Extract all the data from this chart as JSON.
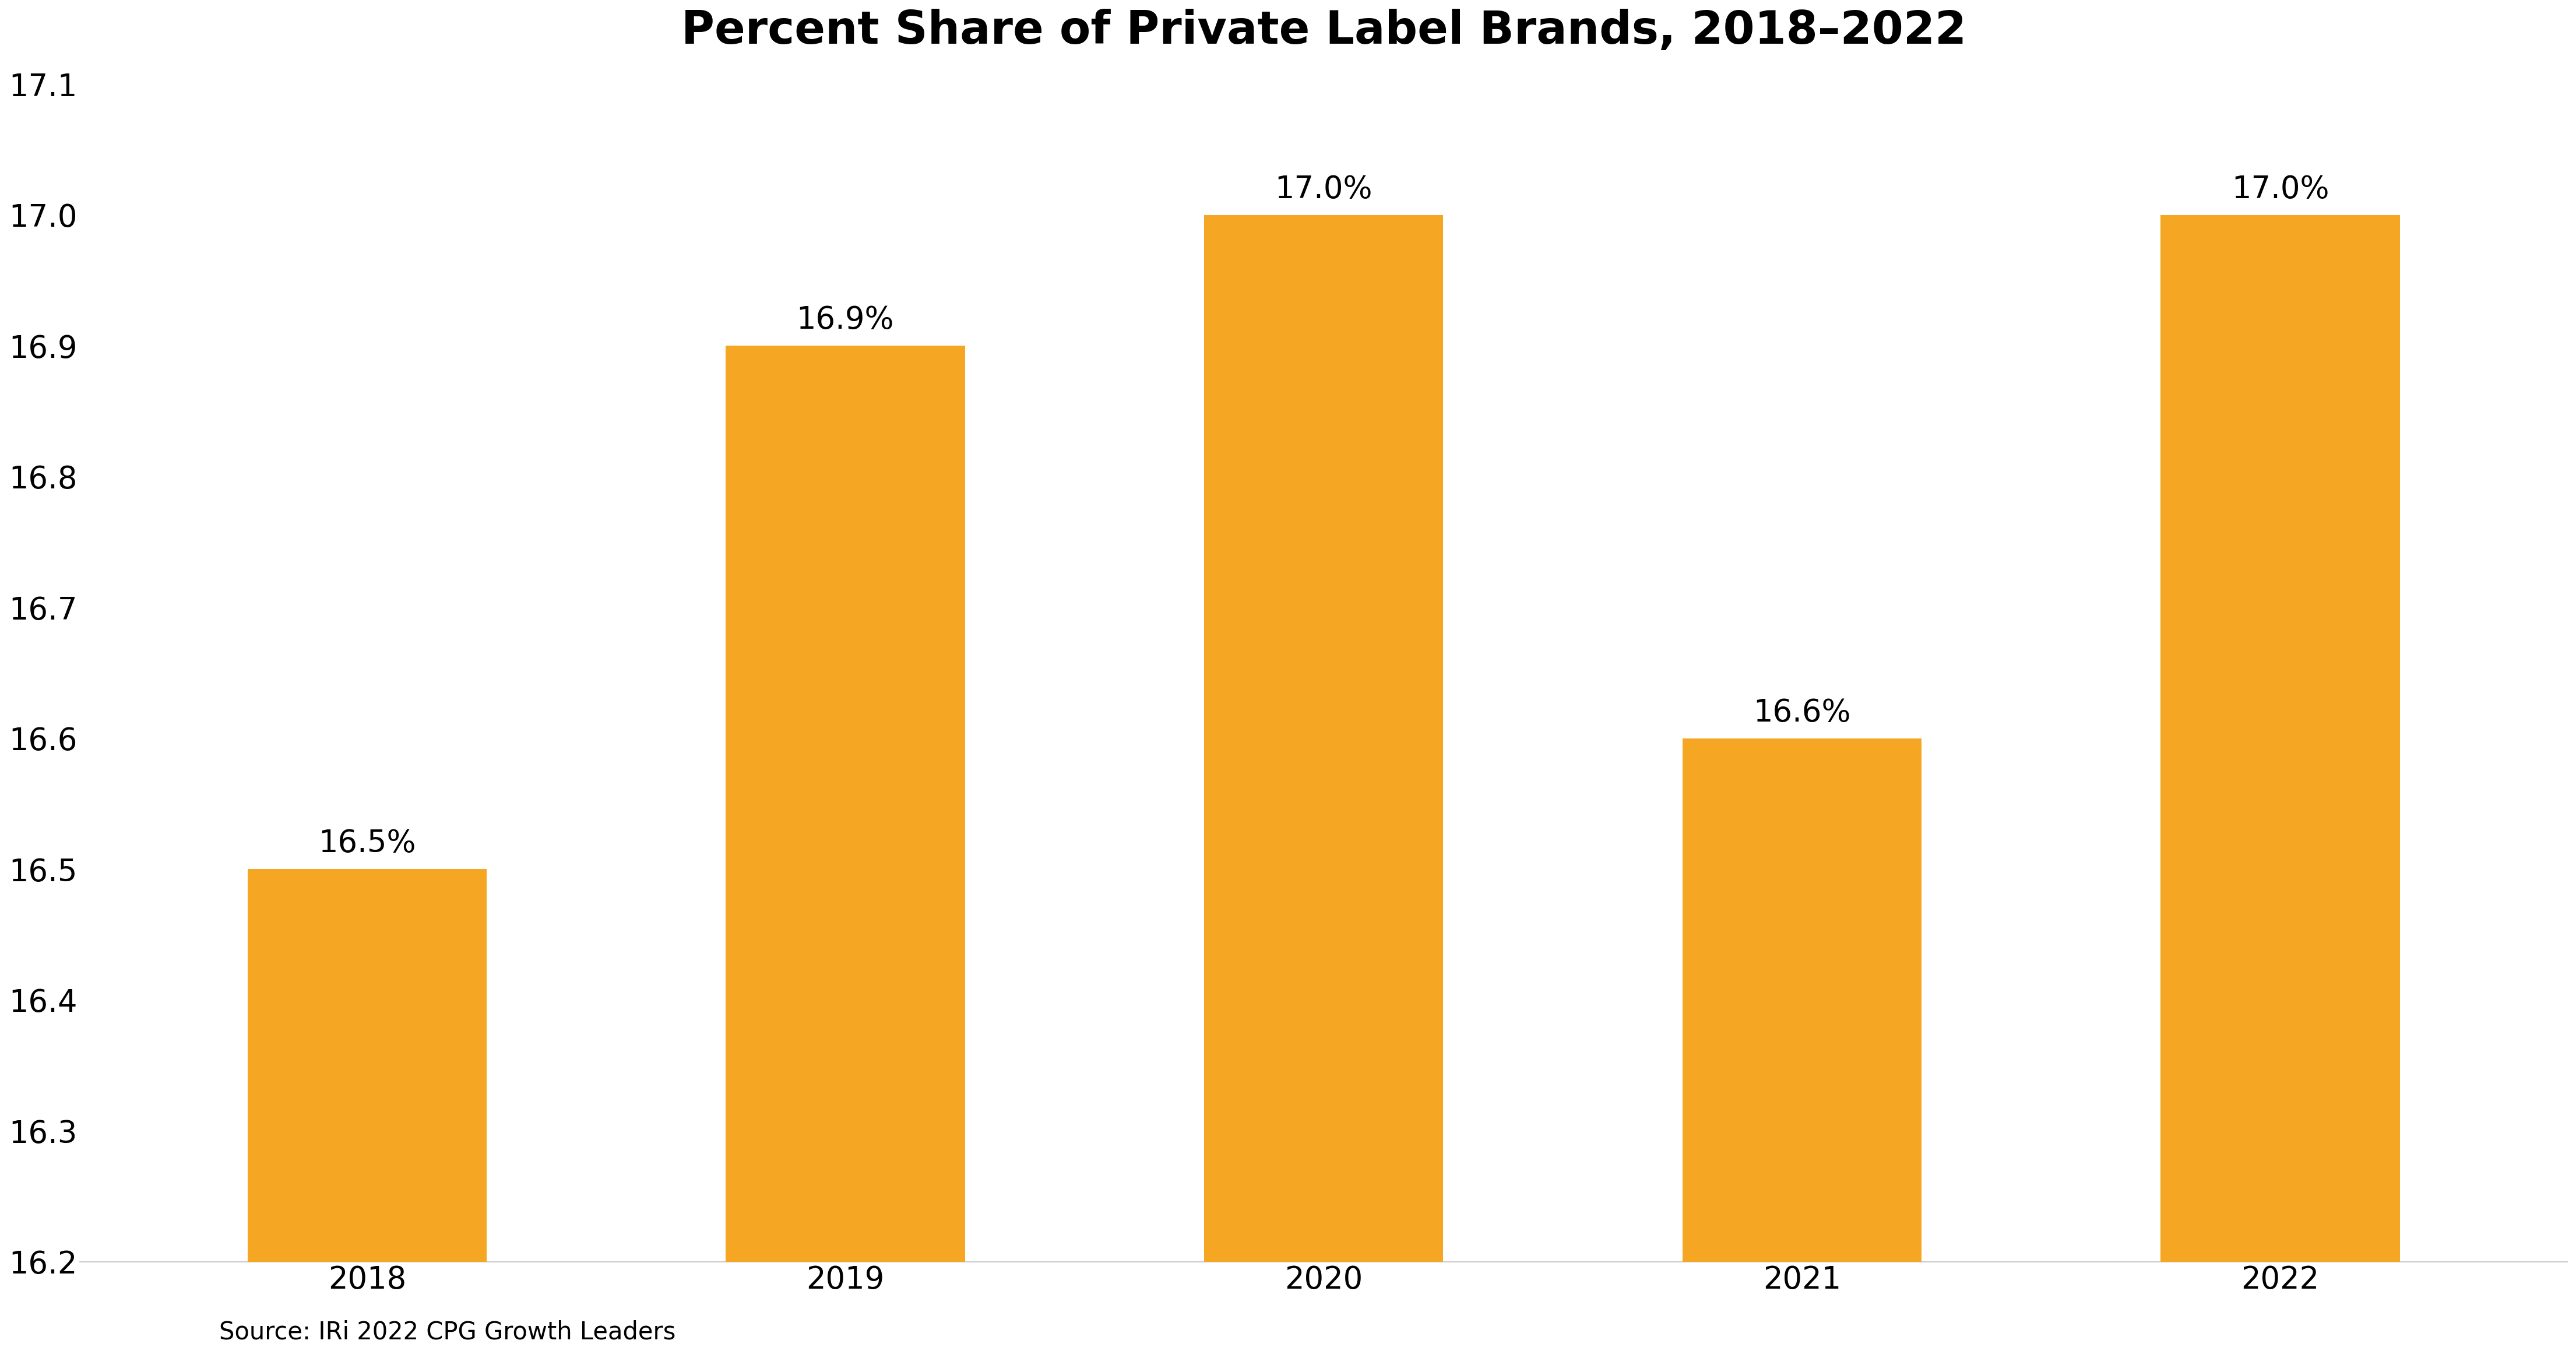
{
  "title": "Percent Share of Private Label Brands, 2018–2022",
  "categories": [
    "2018",
    "2019",
    "2020",
    "2021",
    "2022"
  ],
  "values": [
    16.5,
    16.9,
    17.0,
    16.6,
    17.0
  ],
  "labels": [
    "16.5%",
    "16.9%",
    "17.0%",
    "16.6%",
    "17.0%"
  ],
  "bar_color": "#F5A623",
  "background_color": "#FFFFFF",
  "ylim_min": 16.2,
  "ylim_max": 17.1,
  "yticks": [
    16.2,
    16.3,
    16.4,
    16.5,
    16.6,
    16.7,
    16.8,
    16.9,
    17.0,
    17.1
  ],
  "title_fontsize": 56,
  "tick_fontsize": 38,
  "label_fontsize": 38,
  "source_text": "Source: IRi 2022 CPG Growth Leaders",
  "source_fontsize": 30,
  "bar_width": 0.5
}
